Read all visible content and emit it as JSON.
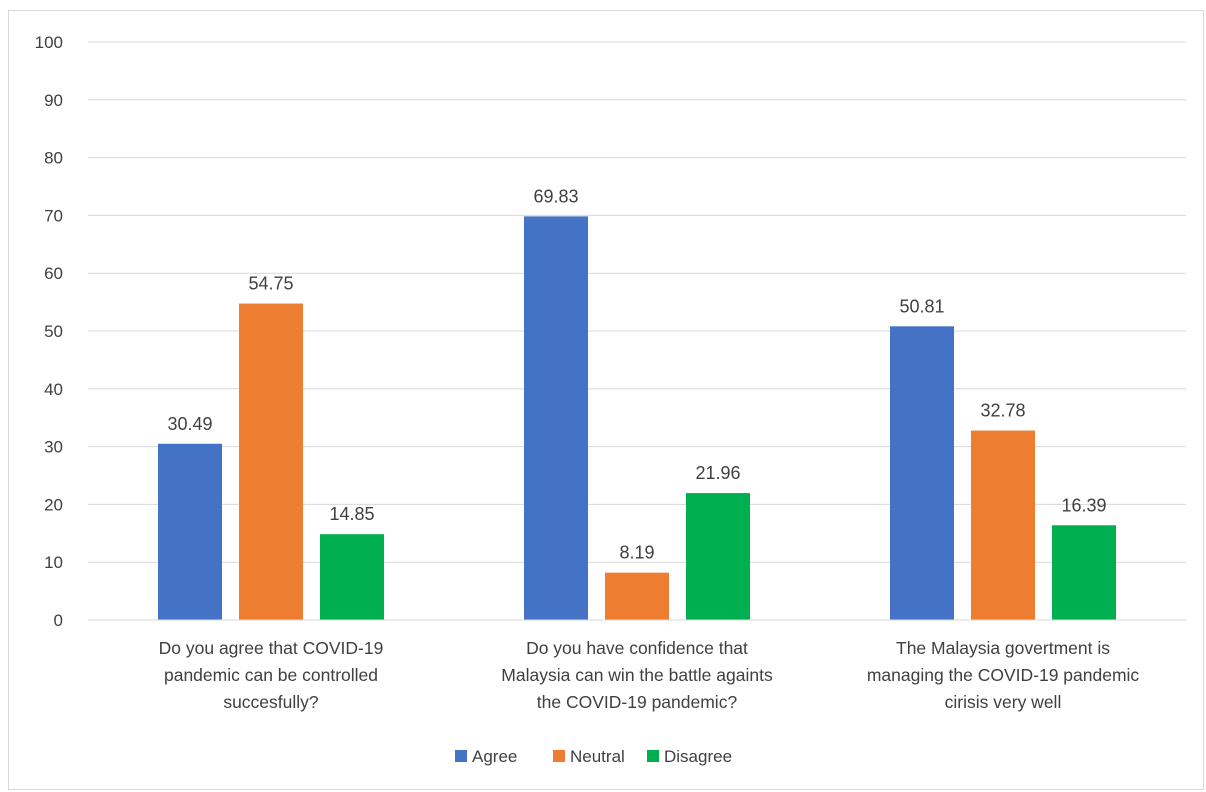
{
  "chart_data": {
    "type": "bar",
    "title": "",
    "xlabel": "",
    "ylabel": "",
    "ylim": [
      0,
      100
    ],
    "yticks": [
      0,
      10,
      20,
      30,
      40,
      50,
      60,
      70,
      80,
      90,
      100
    ],
    "grid": true,
    "legend_position": "bottom",
    "categories": [
      [
        "Do you agree that COVID-19",
        "pandemic can be controlled",
        "succesfully?"
      ],
      [
        "Do you have confidence that",
        "Malaysia can win the battle againts",
        "the COVID-19 pandemic?"
      ],
      [
        "The Malaysia govertment is",
        "managing the COVID-19 pandemic",
        "cirisis very well"
      ]
    ],
    "series": [
      {
        "name": "Agree",
        "color": "#4472c4",
        "values": [
          30.49,
          69.83,
          50.81
        ],
        "labels": [
          "30.49",
          "69.83",
          "50.81"
        ]
      },
      {
        "name": "Neutral",
        "color": "#ed7d31",
        "values": [
          54.75,
          8.19,
          32.78
        ],
        "labels": [
          "54.75",
          "8.19",
          "32.78"
        ]
      },
      {
        "name": "Disagree",
        "color": "#00b050",
        "values": [
          14.85,
          21.96,
          16.39
        ],
        "labels": [
          "14.85",
          "21.96",
          "16.39"
        ]
      }
    ]
  }
}
